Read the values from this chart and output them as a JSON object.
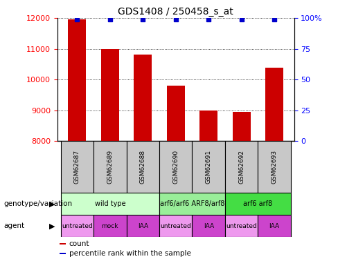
{
  "title": "GDS1408 / 250458_s_at",
  "samples": [
    "GSM62687",
    "GSM62689",
    "GSM62688",
    "GSM62690",
    "GSM62691",
    "GSM62692",
    "GSM62693"
  ],
  "bar_values": [
    11950,
    11000,
    10820,
    9800,
    9000,
    8950,
    10400
  ],
  "percentile_values": [
    99,
    99,
    99,
    99,
    99,
    99,
    99
  ],
  "ylim_left": [
    8000,
    12000
  ],
  "ylim_right": [
    0,
    100
  ],
  "yticks_left": [
    8000,
    9000,
    10000,
    11000,
    12000
  ],
  "yticks_right": [
    0,
    25,
    50,
    75,
    100
  ],
  "bar_color": "#cc0000",
  "percentile_color": "#0000cc",
  "bar_width": 0.55,
  "genotype_data": [
    {
      "label": "wild type",
      "span": [
        0,
        3
      ],
      "color": "#ccffcc"
    },
    {
      "label": "arf6/arf6 ARF8/arf8",
      "span": [
        3,
        5
      ],
      "color": "#99ee99"
    },
    {
      "label": "arf6 arf8",
      "span": [
        5,
        7
      ],
      "color": "#44dd44"
    }
  ],
  "agent_data": [
    {
      "label": "untreated",
      "span": [
        0,
        1
      ],
      "color": "#ee99ee"
    },
    {
      "label": "mock",
      "span": [
        1,
        2
      ],
      "color": "#cc44cc"
    },
    {
      "label": "IAA",
      "span": [
        2,
        3
      ],
      "color": "#cc44cc"
    },
    {
      "label": "untreated",
      "span": [
        3,
        4
      ],
      "color": "#ee99ee"
    },
    {
      "label": "IAA",
      "span": [
        4,
        5
      ],
      "color": "#cc44cc"
    },
    {
      "label": "untreated",
      "span": [
        5,
        6
      ],
      "color": "#ee99ee"
    },
    {
      "label": "IAA",
      "span": [
        6,
        7
      ],
      "color": "#cc44cc"
    }
  ],
  "legend_items": [
    {
      "label": "count",
      "color": "#cc0000"
    },
    {
      "label": "percentile rank within the sample",
      "color": "#0000cc"
    }
  ],
  "fig_width": 4.88,
  "fig_height": 3.75,
  "dpi": 100
}
